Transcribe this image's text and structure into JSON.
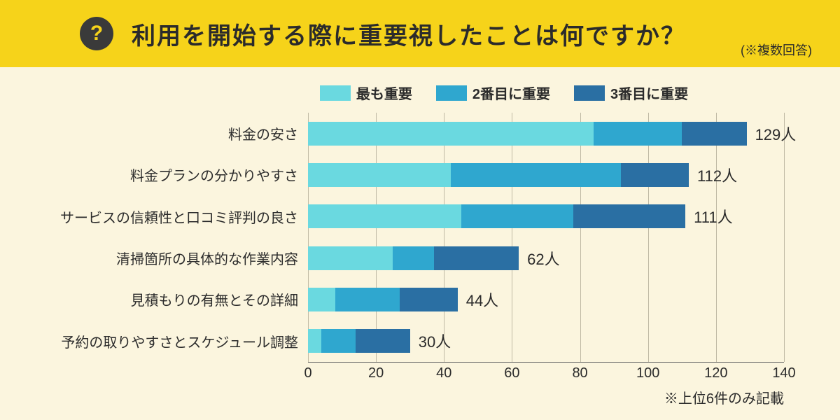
{
  "header": {
    "bg_color": "#f6d31a",
    "icon_bg": "#3a3a3a",
    "icon_fg": "#f6d31a",
    "icon_glyph": "?",
    "title": "利用を開始する際に重要視したことは何ですか？",
    "title_color": "#2b2b2b",
    "subtitle": "(※複数回答)",
    "subtitle_color": "#2b2b2b"
  },
  "chart": {
    "bg_color": "#fbf5de",
    "text_color": "#2b2b2b",
    "grid_color": "#bfb9a4",
    "axis_color": "#6a6a6a",
    "type": "stacked-horizontal-bar",
    "xmax": 140,
    "xtick_step": 20,
    "ticks": [
      "0",
      "20",
      "40",
      "60",
      "80",
      "100",
      "120",
      "140"
    ],
    "unit_suffix": "人",
    "legend": [
      {
        "label": "最も重要",
        "color": "#6ad9e0"
      },
      {
        "label": "2番目に重要",
        "color": "#2fa7cf"
      },
      {
        "label": "3番目に重要",
        "color": "#2a6fa3"
      }
    ],
    "rows": [
      {
        "label": "料金の安さ",
        "segments": [
          84,
          26,
          19
        ],
        "total": 129
      },
      {
        "label": "料金プランの分かりやすさ",
        "segments": [
          42,
          50,
          20
        ],
        "total": 112
      },
      {
        "label": "サービスの信頼性と口コミ評判の良さ",
        "segments": [
          45,
          33,
          33
        ],
        "total": 111
      },
      {
        "label": "清掃箇所の具体的な作業内容",
        "segments": [
          25,
          12,
          25
        ],
        "total": 62
      },
      {
        "label": "見積もりの有無とその詳細",
        "segments": [
          8,
          19,
          17
        ],
        "total": 44
      },
      {
        "label": "予約の取りやすさとスケジュール調整",
        "segments": [
          4,
          10,
          16
        ],
        "total": 30
      }
    ],
    "footnote": "※上位6件のみ記載"
  }
}
